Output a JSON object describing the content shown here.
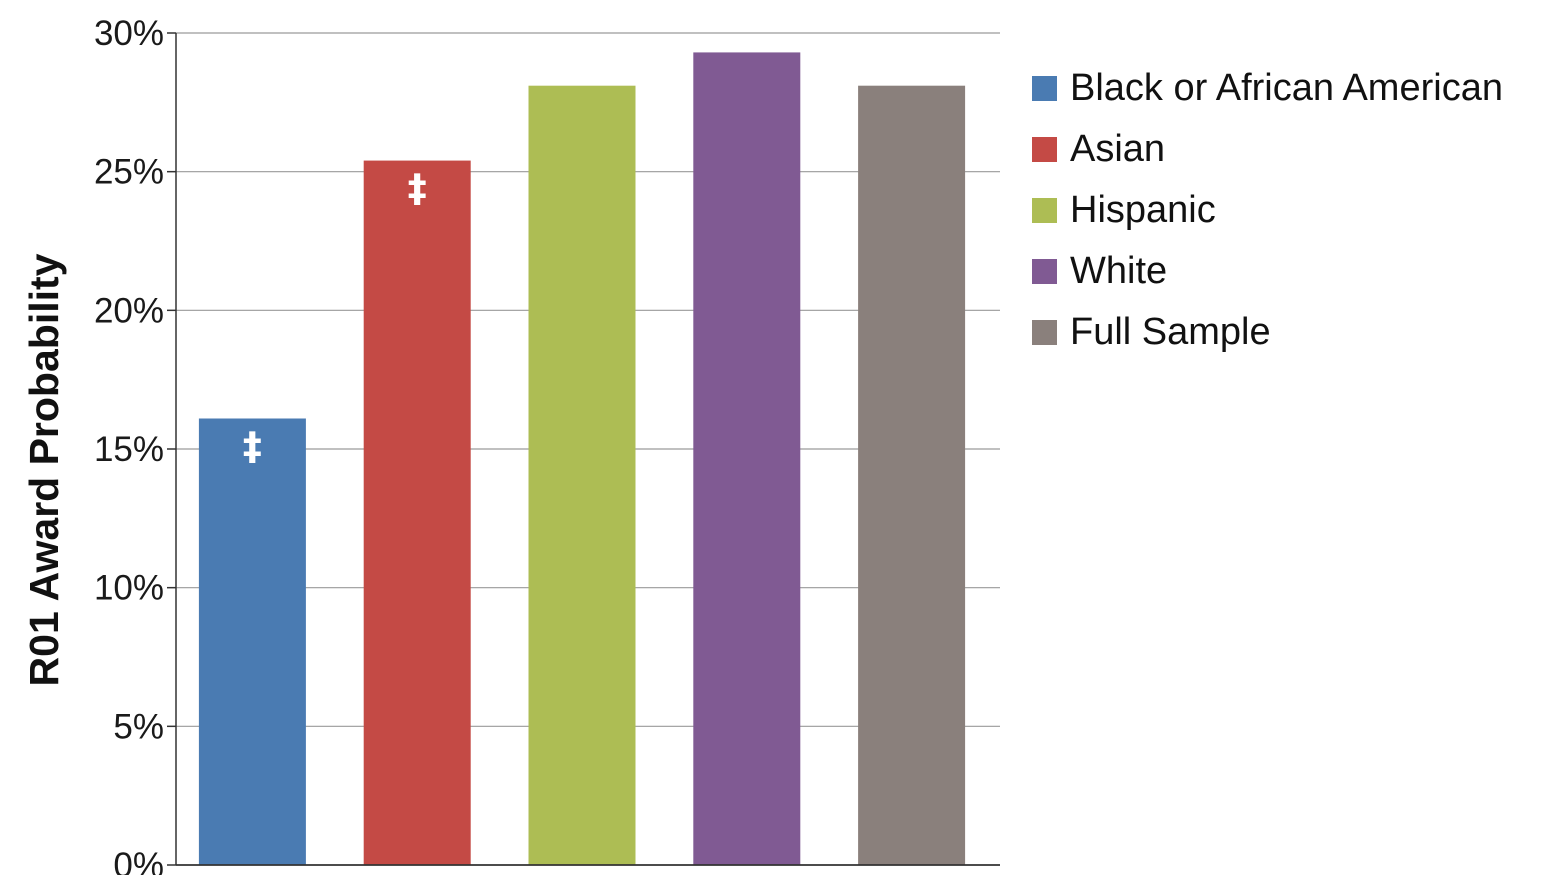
{
  "chart_data": {
    "type": "bar",
    "title": "",
    "xlabel": "",
    "ylabel": "R01 Award Probability",
    "ylim": [
      0,
      30
    ],
    "yticks": [
      0,
      5,
      10,
      15,
      20,
      25,
      30
    ],
    "ytick_labels": [
      "0%",
      "5%",
      "10%",
      "15%",
      "20%",
      "25%",
      "30%"
    ],
    "grid": true,
    "legend_position": "right",
    "categories": [
      "Black or African American",
      "Asian",
      "Hispanic",
      "White",
      "Full Sample"
    ],
    "values": [
      16.1,
      25.4,
      28.1,
      29.3,
      28.1
    ],
    "colors": [
      "#4a7bb2",
      "#c44a45",
      "#adbd54",
      "#805a93",
      "#8a807c"
    ],
    "annotations": [
      "‡",
      "‡",
      "",
      "",
      ""
    ]
  },
  "legend": {
    "items": [
      {
        "label": "Black or African American",
        "color": "#4a7bb2"
      },
      {
        "label": "Asian",
        "color": "#c44a45"
      },
      {
        "label": "Hispanic",
        "color": "#adbd54"
      },
      {
        "label": "White",
        "color": "#805a93"
      },
      {
        "label": "Full Sample",
        "color": "#8a807c"
      }
    ]
  }
}
